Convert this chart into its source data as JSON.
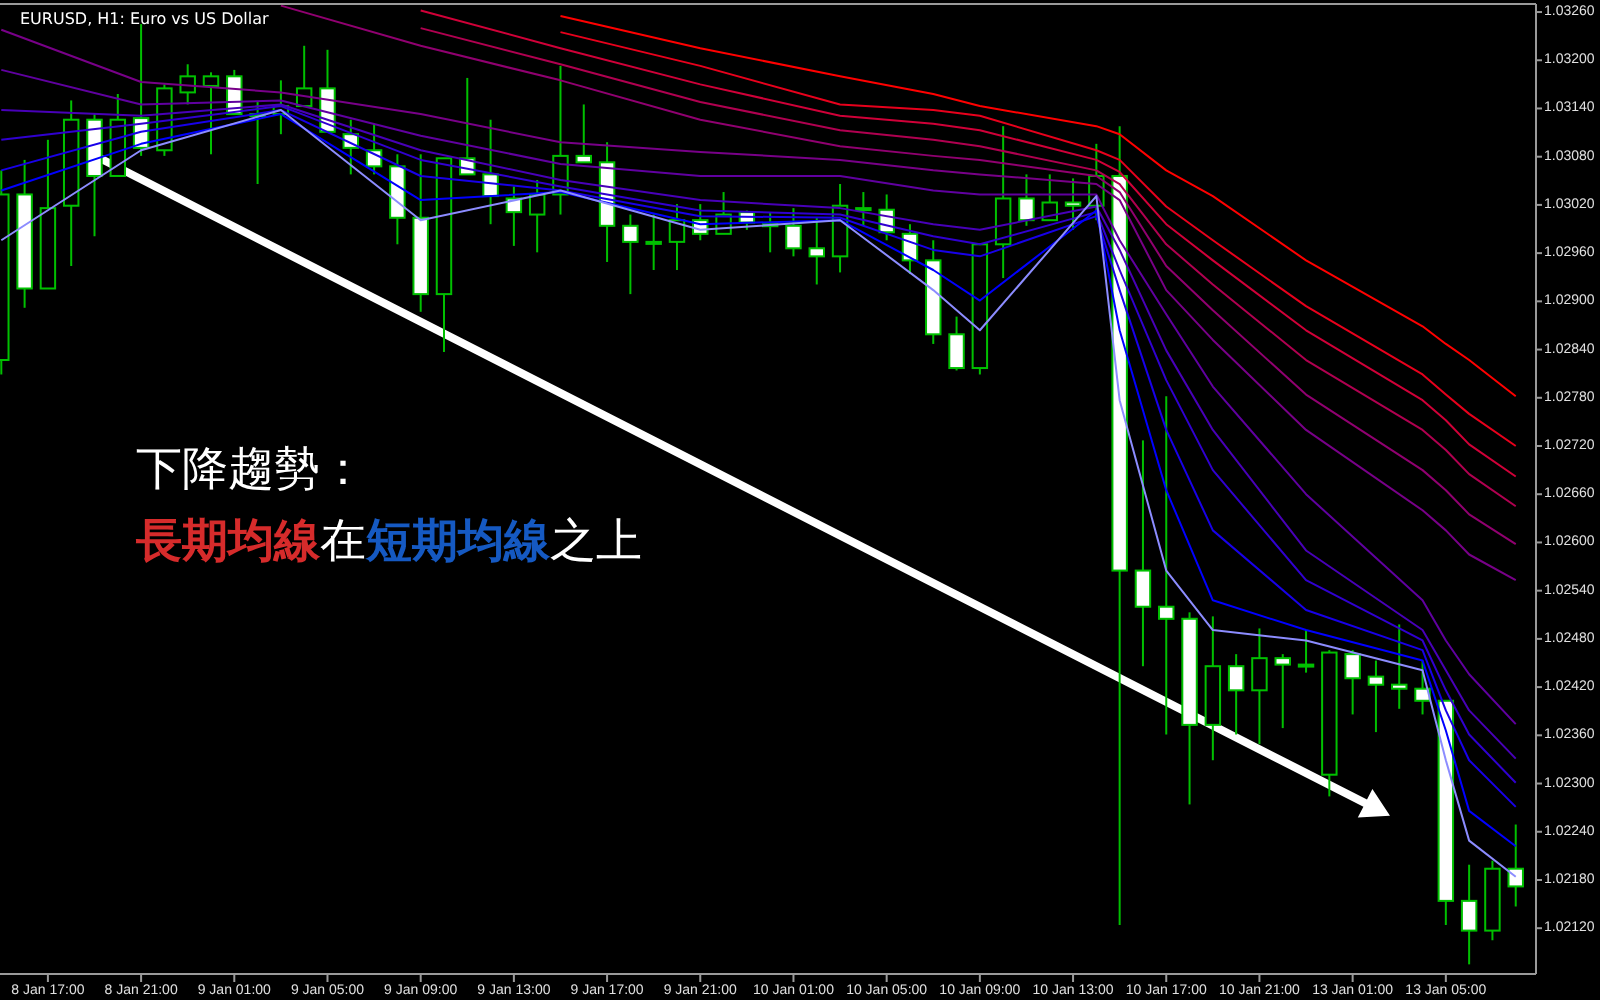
{
  "chart_data": {
    "type": "candlestick",
    "title": "EURUSD, H1: Euro vs US Dollar",
    "categories": [
      null,
      null,
      "8 Jan 17:00",
      null,
      null,
      null,
      "8 Jan 21:00",
      null,
      null,
      null,
      "9 Jan 01:00",
      null,
      null,
      null,
      "9 Jan 05:00",
      null,
      null,
      null,
      "9 Jan 09:00",
      null,
      null,
      null,
      "9 Jan 13:00",
      null,
      null,
      null,
      "9 Jan 17:00",
      null,
      null,
      null,
      "9 Jan 21:00",
      null,
      null,
      null,
      "10 Jan 01:00",
      null,
      null,
      null,
      "10 Jan 05:00",
      null,
      null,
      null,
      "10 Jan 09:00",
      null,
      null,
      null,
      "10 Jan 13:00",
      null,
      null,
      null,
      "10 Jan 17:00",
      null,
      null,
      null,
      "10 Jan 21:00",
      null,
      null,
      null,
      "13 Jan 01:00",
      null,
      null,
      null,
      "13 Jan 05:00",
      null,
      null,
      null
    ],
    "ohlc": [
      [
        1.02827,
        1.03063,
        1.02809,
        1.03033
      ],
      [
        1.03033,
        1.03076,
        1.02892,
        1.02916
      ],
      [
        1.02916,
        1.03101,
        1.02916,
        1.03016
      ],
      [
        1.03019,
        1.0315,
        1.02944,
        1.03126
      ],
      [
        1.03126,
        1.03133,
        1.02981,
        1.03056
      ],
      [
        1.03056,
        1.03158,
        1.03056,
        1.03126
      ],
      [
        1.03128,
        1.03245,
        1.03081,
        1.03091
      ],
      [
        1.03088,
        1.0317,
        1.03081,
        1.03165
      ],
      [
        1.0316,
        1.03195,
        1.03145,
        1.0318
      ],
      [
        1.03168,
        1.03185,
        1.03083,
        1.0318
      ],
      [
        1.0318,
        1.03188,
        1.03133,
        1.03133
      ],
      [
        1.03133,
        1.03148,
        1.03046,
        1.03133
      ],
      [
        1.03133,
        1.03175,
        1.03108,
        1.03143
      ],
      [
        1.03143,
        1.03218,
        1.03143,
        1.03165
      ],
      [
        1.03165,
        1.03213,
        1.03111,
        1.03111
      ],
      [
        1.03108,
        1.03126,
        1.03058,
        1.03091
      ],
      [
        1.03088,
        1.03121,
        1.03058,
        1.03068
      ],
      [
        1.03068,
        1.03083,
        1.02971,
        1.03004
      ],
      [
        1.03004,
        1.03083,
        1.02887,
        1.02909
      ],
      [
        1.02909,
        1.03078,
        1.02837,
        1.03078
      ],
      [
        1.03078,
        1.03178,
        1.03058,
        1.03058
      ],
      [
        1.03058,
        1.03126,
        1.02996,
        1.03031
      ],
      [
        1.03028,
        1.03043,
        1.02969,
        1.03011
      ],
      [
        1.03008,
        1.03051,
        1.02961,
        1.03033
      ],
      [
        1.03033,
        1.03193,
        1.03008,
        1.03081
      ],
      [
        1.03081,
        1.03145,
        1.03073,
        1.03073
      ],
      [
        1.03073,
        1.03098,
        1.02949,
        1.02994
      ],
      [
        1.02994,
        1.03008,
        1.02909,
        1.02974
      ],
      [
        1.02974,
        1.03008,
        1.02939,
        1.02974
      ],
      [
        1.02974,
        1.03021,
        1.02939,
        1.03001
      ],
      [
        1.03001,
        1.03021,
        1.02976,
        1.02984
      ],
      [
        1.02984,
        1.03036,
        1.02984,
        1.03008
      ],
      [
        1.03011,
        1.03013,
        1.02989,
        1.02998
      ],
      [
        1.02994,
        1.03011,
        1.02961,
        1.02996
      ],
      [
        1.02994,
        1.03016,
        1.02956,
        1.02966
      ],
      [
        1.02966,
        1.03004,
        1.02921,
        1.02956
      ],
      [
        1.02956,
        1.03046,
        1.02936,
        1.03019
      ],
      [
        1.03016,
        1.03036,
        1.02994,
        1.03016
      ],
      [
        1.03014,
        1.03033,
        1.02976,
        1.02986
      ],
      [
        1.02984,
        1.02996,
        1.02934,
        1.02951
      ],
      [
        1.02951,
        1.02976,
        1.02847,
        1.02859
      ],
      [
        1.02859,
        1.02881,
        1.02814,
        1.02817
      ],
      [
        1.02817,
        1.02971,
        1.02809,
        1.02971
      ],
      [
        1.02971,
        1.03118,
        1.02929,
        1.03028
      ],
      [
        1.03028,
        1.03058,
        1.02994,
        1.03001
      ],
      [
        1.03001,
        1.03058,
        1.03001,
        1.03023
      ],
      [
        1.03023,
        1.03053,
        1.02989,
        1.03019
      ],
      [
        1.03019,
        1.03096,
        1.03001,
        1.03056
      ],
      [
        1.03056,
        1.03118,
        1.02124,
        1.02565
      ],
      [
        1.02565,
        1.02727,
        1.02446,
        1.0252
      ],
      [
        1.0252,
        1.02782,
        1.02361,
        1.02505
      ],
      [
        1.02505,
        1.02513,
        1.02274,
        1.02373
      ],
      [
        1.02373,
        1.02508,
        1.02329,
        1.02446
      ],
      [
        1.02446,
        1.02461,
        1.02361,
        1.02416
      ],
      [
        1.02416,
        1.02493,
        1.02349,
        1.02456
      ],
      [
        1.02456,
        1.02461,
        1.02369,
        1.02448
      ],
      [
        1.02448,
        1.02491,
        1.02438,
        1.02446
      ],
      [
        1.02311,
        1.02466,
        1.02284,
        1.02463
      ],
      [
        1.02461,
        1.02466,
        1.02386,
        1.02431
      ],
      [
        1.02433,
        1.02453,
        1.02364,
        1.02423
      ],
      [
        1.02423,
        1.02498,
        1.02393,
        1.02418
      ],
      [
        1.02418,
        1.02453,
        1.02386,
        1.02403
      ],
      [
        1.02403,
        1.02403,
        1.02124,
        1.02154
      ],
      [
        1.02154,
        1.02199,
        1.02075,
        1.02117
      ],
      [
        1.02117,
        1.02204,
        1.02105,
        1.02194
      ],
      [
        1.02194,
        1.02249,
        1.02147,
        1.02172
      ]
    ],
    "series": [
      {
        "type": "line",
        "color": "#ff0000",
        "values": [
          null,
          null,
          null,
          null,
          null,
          null,
          null,
          null,
          null,
          null,
          null,
          null,
          null,
          null,
          null,
          null,
          null,
          null,
          null,
          null,
          null,
          null,
          null,
          null,
          1.03255,
          null,
          null,
          null,
          null,
          null,
          1.03215,
          null,
          null,
          null,
          null,
          null,
          1.0318,
          null,
          null,
          null,
          1.03158,
          null,
          1.03143,
          null,
          null,
          null,
          null,
          1.03118,
          1.03108,
          null,
          1.03063,
          null,
          1.03031,
          null,
          null,
          null,
          1.02951,
          null,
          null,
          null,
          null,
          1.02869,
          1.02847,
          1.02827,
          null,
          1.02782
        ]
      },
      {
        "type": "line",
        "color": "#e8001c",
        "values": [
          null,
          null,
          null,
          null,
          null,
          null,
          null,
          null,
          null,
          null,
          null,
          null,
          null,
          null,
          null,
          null,
          null,
          null,
          null,
          null,
          null,
          null,
          null,
          null,
          1.03235,
          null,
          null,
          null,
          null,
          null,
          1.03193,
          null,
          null,
          null,
          null,
          null,
          1.03145,
          null,
          null,
          null,
          1.03138,
          null,
          1.03131,
          null,
          null,
          null,
          null,
          1.03088,
          1.03076,
          null,
          1.03018,
          null,
          1.02976,
          null,
          null,
          null,
          1.02894,
          null,
          null,
          null,
          null,
          1.02809,
          1.02784,
          1.0276,
          null,
          1.0272
        ]
      },
      {
        "type": "line",
        "color": "#d00038",
        "values": [
          null,
          null,
          null,
          null,
          null,
          null,
          null,
          null,
          null,
          null,
          null,
          null,
          null,
          null,
          null,
          null,
          null,
          null,
          1.03262,
          null,
          null,
          null,
          null,
          null,
          1.03215,
          null,
          null,
          null,
          null,
          null,
          1.0317,
          null,
          null,
          null,
          null,
          null,
          1.03131,
          null,
          null,
          null,
          1.03121,
          null,
          1.03113,
          null,
          null,
          null,
          null,
          1.03076,
          1.03061,
          null,
          1.02996,
          null,
          1.02951,
          null,
          null,
          null,
          1.02864,
          null,
          null,
          null,
          null,
          1.02777,
          1.02752,
          1.02722,
          null,
          1.02682
        ]
      },
      {
        "type": "line",
        "color": "#b00050",
        "values": [
          null,
          null,
          null,
          null,
          null,
          null,
          null,
          null,
          null,
          null,
          null,
          null,
          null,
          null,
          null,
          null,
          null,
          null,
          1.0324,
          null,
          null,
          null,
          null,
          null,
          1.03195,
          null,
          null,
          null,
          null,
          null,
          1.03148,
          null,
          null,
          null,
          null,
          null,
          1.03113,
          null,
          null,
          null,
          1.03101,
          null,
          1.03093,
          null,
          null,
          null,
          null,
          1.03063,
          1.03046,
          null,
          1.02971,
          null,
          1.02921,
          null,
          null,
          null,
          1.02827,
          null,
          null,
          null,
          null,
          1.0274,
          1.02715,
          1.02685,
          null,
          1.02645
        ]
      },
      {
        "type": "line",
        "color": "#900070",
        "values": [
          null,
          null,
          null,
          null,
          null,
          null,
          null,
          null,
          null,
          null,
          null,
          null,
          1.03268,
          null,
          null,
          null,
          null,
          null,
          1.03218,
          null,
          null,
          null,
          null,
          null,
          1.03175,
          null,
          null,
          null,
          null,
          null,
          1.03126,
          null,
          null,
          null,
          null,
          null,
          1.03093,
          null,
          null,
          null,
          1.03081,
          null,
          1.03076,
          null,
          null,
          null,
          null,
          1.03056,
          1.03036,
          null,
          1.02944,
          null,
          1.02889,
          null,
          null,
          null,
          1.02784,
          null,
          null,
          null,
          null,
          1.0269,
          1.02665,
          1.02635,
          null,
          1.02598
        ]
      },
      {
        "type": "line",
        "color": "#780088",
        "values": [
          1.03238,
          null,
          null,
          null,
          null,
          null,
          1.03173,
          null,
          null,
          null,
          null,
          null,
          1.0316,
          null,
          null,
          null,
          null,
          null,
          1.03133,
          null,
          null,
          null,
          null,
          null,
          1.03098,
          null,
          null,
          null,
          null,
          null,
          1.03086,
          null,
          null,
          null,
          null,
          null,
          1.03076,
          null,
          null,
          null,
          1.03063,
          null,
          1.03058,
          null,
          null,
          null,
          null,
          1.03046,
          1.03026,
          null,
          1.02914,
          null,
          1.02852,
          null,
          null,
          null,
          1.0274,
          null,
          null,
          null,
          null,
          1.0264,
          1.02615,
          1.02585,
          null,
          1.02553
        ]
      },
      {
        "type": "line",
        "color": "#6000a0",
        "values": [
          1.03188,
          null,
          null,
          null,
          null,
          null,
          1.03145,
          null,
          null,
          null,
          null,
          null,
          1.0315,
          null,
          null,
          null,
          null,
          null,
          1.03106,
          null,
          null,
          null,
          null,
          null,
          1.03071,
          null,
          null,
          null,
          null,
          null,
          1.03056,
          null,
          null,
          null,
          null,
          null,
          1.03056,
          null,
          null,
          null,
          1.03038,
          null,
          1.03033,
          null,
          null,
          null,
          null,
          1.03033,
          1.02976,
          null,
          1.02884,
          null,
          1.02794,
          null,
          null,
          null,
          1.0266,
          null,
          null,
          null,
          null,
          1.02528,
          1.02478,
          1.02436,
          null,
          1.02374
        ]
      },
      {
        "type": "line",
        "color": "#4800b8",
        "values": [
          1.03138,
          null,
          null,
          null,
          null,
          null,
          1.03131,
          null,
          null,
          null,
          null,
          null,
          1.03145,
          null,
          null,
          null,
          null,
          null,
          1.03088,
          null,
          null,
          null,
          null,
          null,
          1.03051,
          null,
          null,
          null,
          null,
          null,
          1.03026,
          null,
          null,
          null,
          null,
          null,
          1.03016,
          null,
          null,
          null,
          1.02996,
          null,
          1.02989,
          null,
          null,
          null,
          null,
          1.03018,
          1.02964,
          null,
          1.02839,
          null,
          1.0274,
          null,
          null,
          null,
          1.0259,
          null,
          null,
          null,
          null,
          1.02491,
          1.02441,
          1.02391,
          null,
          1.02331
        ]
      },
      {
        "type": "line",
        "color": "#3000d0",
        "values": [
          1.03101,
          null,
          null,
          null,
          null,
          null,
          1.03121,
          null,
          null,
          null,
          null,
          null,
          1.03143,
          null,
          null,
          null,
          null,
          null,
          1.03076,
          null,
          null,
          null,
          null,
          null,
          1.03043,
          null,
          null,
          null,
          null,
          null,
          1.03013,
          null,
          null,
          null,
          null,
          null,
          1.03008,
          null,
          null,
          null,
          1.02981,
          null,
          1.02971,
          null,
          null,
          null,
          null,
          1.03011,
          1.02939,
          null,
          1.02802,
          null,
          1.0269,
          null,
          null,
          null,
          1.02553,
          null,
          null,
          null,
          null,
          1.02478,
          1.02416,
          1.02361,
          null,
          1.02301
        ]
      },
      {
        "type": "line",
        "color": "#1800e8",
        "values": [
          1.03063,
          null,
          null,
          null,
          null,
          null,
          1.03111,
          null,
          null,
          null,
          null,
          null,
          1.03138,
          null,
          null,
          null,
          null,
          null,
          1.03056,
          null,
          null,
          null,
          null,
          null,
          1.03038,
          null,
          null,
          null,
          null,
          null,
          1.03006,
          null,
          null,
          null,
          null,
          null,
          1.03004,
          null,
          null,
          null,
          1.02964,
          null,
          1.02956,
          null,
          null,
          null,
          null,
          1.03006,
          1.02914,
          null,
          1.0274,
          null,
          1.02615,
          null,
          null,
          null,
          1.02516,
          null,
          null,
          null,
          null,
          1.02466,
          1.02391,
          1.02329,
          null,
          1.02271
        ]
      },
      {
        "type": "line",
        "color": "#0000ff",
        "values": [
          1.03038,
          null,
          null,
          null,
          null,
          null,
          1.03096,
          null,
          null,
          null,
          null,
          null,
          1.03133,
          null,
          null,
          null,
          null,
          null,
          1.03026,
          null,
          null,
          null,
          null,
          null,
          1.03036,
          null,
          null,
          null,
          null,
          null,
          1.02996,
          null,
          null,
          null,
          null,
          null,
          1.03001,
          null,
          null,
          null,
          1.02939,
          null,
          1.02901,
          null,
          null,
          null,
          null,
          1.03013,
          1.02864,
          null,
          1.02665,
          null,
          1.02528,
          null,
          null,
          null,
          1.02491,
          null,
          null,
          null,
          null,
          1.02453,
          1.02366,
          1.02266,
          null,
          1.02222
        ]
      },
      {
        "type": "line",
        "color": "#8c8cff",
        "values": [
          1.02976,
          null,
          null,
          null,
          null,
          null,
          1.03088,
          null,
          null,
          null,
          null,
          null,
          1.03138,
          null,
          null,
          null,
          null,
          null,
          1.03001,
          null,
          null,
          null,
          null,
          null,
          1.03038,
          null,
          null,
          null,
          null,
          null,
          1.02989,
          null,
          null,
          null,
          null,
          null,
          1.03001,
          null,
          null,
          null,
          1.02914,
          null,
          1.02864,
          null,
          null,
          null,
          null,
          1.03031,
          1.02777,
          null,
          1.02565,
          null,
          1.02491,
          null,
          null,
          null,
          1.02478,
          null,
          null,
          null,
          null,
          1.02441,
          1.02329,
          1.02229,
          null,
          1.02184
        ]
      }
    ],
    "ylim": [
      1.02063,
      1.0327
    ],
    "yticks": [
      {
        "value": 1.0212,
        "label": "1.02120"
      },
      {
        "value": 1.0218,
        "label": "1.02180"
      },
      {
        "value": 1.0224,
        "label": "1.02240"
      },
      {
        "value": 1.023,
        "label": "1.02300"
      },
      {
        "value": 1.0236,
        "label": "1.02360"
      },
      {
        "value": 1.0242,
        "label": "1.02420"
      },
      {
        "value": 1.0248,
        "label": "1.02480"
      },
      {
        "value": 1.0254,
        "label": "1.02540"
      },
      {
        "value": 1.026,
        "label": "1.02600"
      },
      {
        "value": 1.0266,
        "label": "1.02660"
      },
      {
        "value": 1.0272,
        "label": "1.02720"
      },
      {
        "value": 1.0278,
        "label": "1.02780"
      },
      {
        "value": 1.0284,
        "label": "1.02840"
      },
      {
        "value": 1.029,
        "label": "1.02900"
      },
      {
        "value": 1.0296,
        "label": "1.02960"
      },
      {
        "value": 1.0302,
        "label": "1.03020"
      },
      {
        "value": 1.0308,
        "label": "1.03080"
      },
      {
        "value": 1.0314,
        "label": "1.03140"
      },
      {
        "value": 1.032,
        "label": "1.03200"
      },
      {
        "value": 1.0326,
        "label": "1.03260"
      }
    ],
    "annotations": [
      "下降趨勢：",
      "長期均線",
      "在",
      "短期均線",
      "之上"
    ]
  }
}
